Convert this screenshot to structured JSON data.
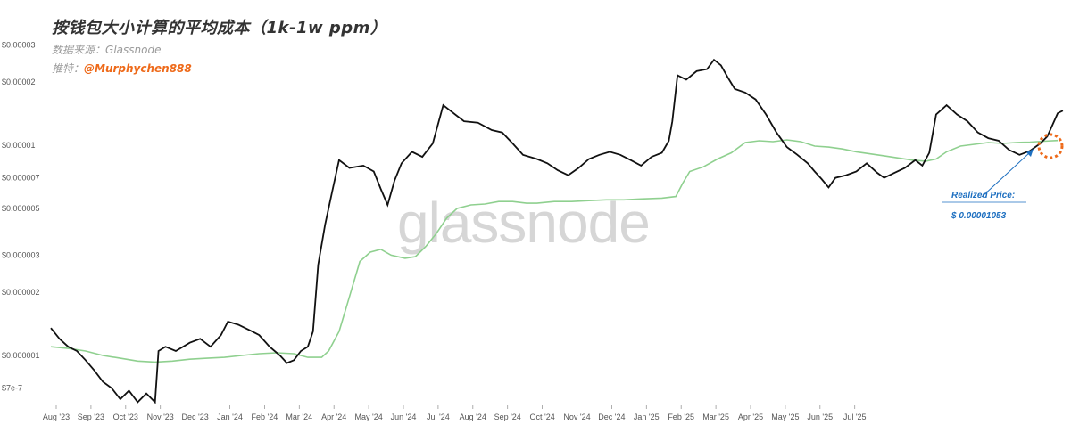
{
  "header": {
    "title": "按钱包大小计算的平均成本（1k-1w ppm）",
    "source_label": "数据来源：",
    "source_value": "Glassnode",
    "twitter_label": "推特：",
    "twitter_handle": "@Murphychen888"
  },
  "watermark": "glassnode",
  "colors": {
    "price": "#111111",
    "realized": "#8fd08f",
    "accent": "#ee6a1a",
    "annotation": "#1d6fc0"
  },
  "chart_data": {
    "type": "line",
    "y_scale": "log",
    "y_ticks": [
      {
        "label": "$0.00003",
        "value": 3e-05
      },
      {
        "label": "$0.00002",
        "value": 2e-05
      },
      {
        "label": "$0.00001",
        "value": 1e-05
      },
      {
        "label": "$0.000007",
        "value": 7e-06
      },
      {
        "label": "$0.000005",
        "value": 5e-06
      },
      {
        "label": "$0.000003",
        "value": 3e-06
      },
      {
        "label": "$0.000002",
        "value": 2e-06
      },
      {
        "label": "$0.000001",
        "value": 1e-06
      },
      {
        "label": "$7e-7",
        "value": 7e-07
      }
    ],
    "x_ticks": [
      "Aug '23",
      "Sep '23",
      "Oct '23",
      "Nov '23",
      "Dec '23",
      "Jan '24",
      "Feb '24",
      "Mar '24",
      "Apr '24",
      "May '24",
      "Jun '24",
      "Jul '24",
      "Aug '24",
      "Sep '24",
      "Oct '24",
      "Nov '24",
      "Dec '24",
      "Jan '25",
      "Feb '25",
      "Mar '25",
      "Apr '25",
      "May '25",
      "Jun '25",
      "Jul '25"
    ],
    "series": [
      {
        "key": "price",
        "points": [
          [
            0.0,
            1.35e-06
          ],
          [
            0.25,
            1.2e-06
          ],
          [
            0.5,
            1.1e-06
          ],
          [
            0.75,
            1.05e-06
          ],
          [
            1.0,
            9.5e-07
          ],
          [
            1.25,
            8.5e-07
          ],
          [
            1.5,
            7.5e-07
          ],
          [
            1.75,
            7e-07
          ],
          [
            2.0,
            6.2e-07
          ],
          [
            2.25,
            6.8e-07
          ],
          [
            2.5,
            6e-07
          ],
          [
            2.75,
            6.6e-07
          ],
          [
            3.0,
            6e-07
          ],
          [
            3.1,
            1.05e-06
          ],
          [
            3.3,
            1.1e-06
          ],
          [
            3.6,
            1.05e-06
          ],
          [
            4.0,
            1.15e-06
          ],
          [
            4.3,
            1.2e-06
          ],
          [
            4.6,
            1.1e-06
          ],
          [
            4.9,
            1.25e-06
          ],
          [
            5.1,
            1.45e-06
          ],
          [
            5.4,
            1.4e-06
          ],
          [
            5.8,
            1.3e-06
          ],
          [
            6.0,
            1.25e-06
          ],
          [
            6.3,
            1.1e-06
          ],
          [
            6.6,
            1e-06
          ],
          [
            6.8,
            9.2e-07
          ],
          [
            7.0,
            9.5e-07
          ],
          [
            7.2,
            1.05e-06
          ],
          [
            7.4,
            1.1e-06
          ],
          [
            7.55,
            1.3e-06
          ],
          [
            7.7,
            2.7e-06
          ],
          [
            7.9,
            4.2e-06
          ],
          [
            8.1,
            6e-06
          ],
          [
            8.3,
            8.5e-06
          ],
          [
            8.6,
            7.8e-06
          ],
          [
            9.0,
            8e-06
          ],
          [
            9.3,
            7.5e-06
          ],
          [
            9.5,
            6.2e-06
          ],
          [
            9.7,
            5.2e-06
          ],
          [
            9.9,
            6.8e-06
          ],
          [
            10.1,
            8.2e-06
          ],
          [
            10.4,
            9.3e-06
          ],
          [
            10.7,
            8.8e-06
          ],
          [
            11.0,
            1.02e-05
          ],
          [
            11.3,
            1.55e-05
          ],
          [
            11.6,
            1.42e-05
          ],
          [
            11.9,
            1.3e-05
          ],
          [
            12.3,
            1.28e-05
          ],
          [
            12.7,
            1.18e-05
          ],
          [
            13.0,
            1.15e-05
          ],
          [
            13.3,
            1.02e-05
          ],
          [
            13.6,
            9e-06
          ],
          [
            14.0,
            8.6e-06
          ],
          [
            14.3,
            8.2e-06
          ],
          [
            14.6,
            7.6e-06
          ],
          [
            14.9,
            7.2e-06
          ],
          [
            15.2,
            7.8e-06
          ],
          [
            15.5,
            8.6e-06
          ],
          [
            15.8,
            9e-06
          ],
          [
            16.1,
            9.3e-06
          ],
          [
            16.4,
            9e-06
          ],
          [
            16.7,
            8.5e-06
          ],
          [
            17.0,
            8e-06
          ],
          [
            17.3,
            8.8e-06
          ],
          [
            17.6,
            9.2e-06
          ],
          [
            17.8,
            1.05e-05
          ],
          [
            17.9,
            1.3e-05
          ],
          [
            18.05,
            2.15e-05
          ],
          [
            18.3,
            2.05e-05
          ],
          [
            18.6,
            2.25e-05
          ],
          [
            18.9,
            2.3e-05
          ],
          [
            19.1,
            2.55e-05
          ],
          [
            19.3,
            2.4e-05
          ],
          [
            19.5,
            2.1e-05
          ],
          [
            19.7,
            1.85e-05
          ],
          [
            20.0,
            1.78e-05
          ],
          [
            20.3,
            1.65e-05
          ],
          [
            20.6,
            1.4e-05
          ],
          [
            20.9,
            1.15e-05
          ],
          [
            21.2,
            9.8e-06
          ],
          [
            21.5,
            9e-06
          ],
          [
            21.8,
            8.2e-06
          ],
          [
            22.0,
            7.5e-06
          ],
          [
            22.2,
            6.9e-06
          ],
          [
            22.4,
            6.3e-06
          ],
          [
            22.6,
            7e-06
          ],
          [
            22.9,
            7.2e-06
          ],
          [
            23.2,
            7.5e-06
          ],
          [
            23.5,
            8.2e-06
          ],
          [
            23.8,
            7.4e-06
          ],
          [
            24.0,
            7e-06
          ],
          [
            24.3,
            7.4e-06
          ],
          [
            24.6,
            7.8e-06
          ],
          [
            24.9,
            8.5e-06
          ],
          [
            25.1,
            8e-06
          ],
          [
            25.3,
            9.2e-06
          ],
          [
            25.5,
            1.4e-05
          ],
          [
            25.8,
            1.55e-05
          ],
          [
            26.1,
            1.4e-05
          ],
          [
            26.4,
            1.3e-05
          ],
          [
            26.7,
            1.15e-05
          ],
          [
            27.0,
            1.08e-05
          ],
          [
            27.3,
            1.05e-05
          ],
          [
            27.6,
            9.5e-06
          ],
          [
            27.9,
            9e-06
          ],
          [
            28.2,
            9.4e-06
          ],
          [
            28.5,
            1.02e-05
          ],
          [
            28.7,
            1.1e-05
          ],
          [
            28.85,
            1.25e-05
          ],
          [
            29.0,
            1.42e-05
          ],
          [
            29.15,
            1.46e-05
          ]
        ]
      },
      {
        "key": "realized",
        "points": [
          [
            0.0,
            1.1e-06
          ],
          [
            0.5,
            1.08e-06
          ],
          [
            1.0,
            1.05e-06
          ],
          [
            1.5,
            1e-06
          ],
          [
            2.0,
            9.7e-07
          ],
          [
            2.5,
            9.4e-07
          ],
          [
            3.0,
            9.3e-07
          ],
          [
            3.5,
            9.4e-07
          ],
          [
            4.0,
            9.6e-07
          ],
          [
            4.5,
            9.7e-07
          ],
          [
            5.0,
            9.8e-07
          ],
          [
            5.5,
            1e-06
          ],
          [
            6.0,
            1.02e-06
          ],
          [
            6.5,
            1.03e-06
          ],
          [
            7.0,
            1.02e-06
          ],
          [
            7.4,
            9.8e-07
          ],
          [
            7.8,
            9.8e-07
          ],
          [
            8.0,
            1.05e-06
          ],
          [
            8.3,
            1.3e-06
          ],
          [
            8.6,
            1.9e-06
          ],
          [
            8.9,
            2.8e-06
          ],
          [
            9.2,
            3.1e-06
          ],
          [
            9.5,
            3.2e-06
          ],
          [
            9.8,
            3e-06
          ],
          [
            10.2,
            2.9e-06
          ],
          [
            10.5,
            2.95e-06
          ],
          [
            10.8,
            3.3e-06
          ],
          [
            11.1,
            3.8e-06
          ],
          [
            11.4,
            4.5e-06
          ],
          [
            11.7,
            5e-06
          ],
          [
            12.1,
            5.2e-06
          ],
          [
            12.5,
            5.25e-06
          ],
          [
            12.9,
            5.4e-06
          ],
          [
            13.3,
            5.4e-06
          ],
          [
            13.7,
            5.3e-06
          ],
          [
            14.0,
            5.3e-06
          ],
          [
            14.5,
            5.4e-06
          ],
          [
            15.0,
            5.4e-06
          ],
          [
            15.5,
            5.45e-06
          ],
          [
            16.0,
            5.5e-06
          ],
          [
            16.5,
            5.5e-06
          ],
          [
            17.0,
            5.55e-06
          ],
          [
            17.6,
            5.6e-06
          ],
          [
            18.0,
            5.7e-06
          ],
          [
            18.2,
            6.6e-06
          ],
          [
            18.4,
            7.5e-06
          ],
          [
            18.8,
            7.9e-06
          ],
          [
            19.2,
            8.6e-06
          ],
          [
            19.6,
            9.2e-06
          ],
          [
            20.0,
            1.03e-05
          ],
          [
            20.4,
            1.05e-05
          ],
          [
            20.8,
            1.04e-05
          ],
          [
            21.2,
            1.06e-05
          ],
          [
            21.6,
            1.04e-05
          ],
          [
            22.0,
            9.9e-06
          ],
          [
            22.4,
            9.8e-06
          ],
          [
            22.8,
            9.6e-06
          ],
          [
            23.2,
            9.3e-06
          ],
          [
            23.6,
            9.1e-06
          ],
          [
            24.0,
            8.9e-06
          ],
          [
            24.4,
            8.7e-06
          ],
          [
            24.8,
            8.5e-06
          ],
          [
            25.2,
            8.4e-06
          ],
          [
            25.5,
            8.6e-06
          ],
          [
            25.8,
            9.3e-06
          ],
          [
            26.2,
            9.9e-06
          ],
          [
            26.6,
            1.01e-05
          ],
          [
            27.0,
            1.03e-05
          ],
          [
            27.4,
            1.02e-05
          ],
          [
            27.8,
            1.03e-05
          ],
          [
            28.2,
            1.035e-05
          ],
          [
            28.6,
            1.045e-05
          ],
          [
            29.0,
            1.053e-05
          ]
        ]
      }
    ],
    "annotation": {
      "title": "Realized Price:",
      "value": "$ 0.00001053"
    }
  }
}
